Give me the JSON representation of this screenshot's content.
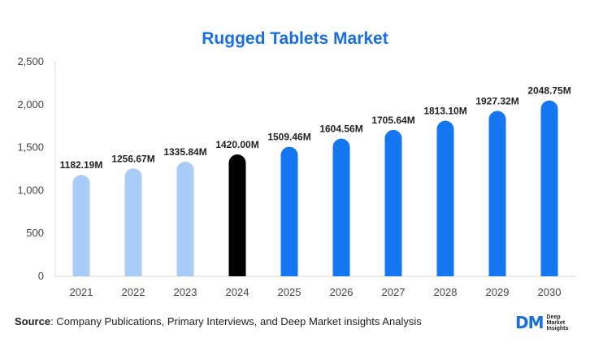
{
  "chart_data": {
    "type": "bar",
    "title": "Rugged Tablets Market",
    "categories": [
      "2021",
      "2022",
      "2023",
      "2024",
      "2025",
      "2026",
      "2027",
      "2028",
      "2029",
      "2030"
    ],
    "values": [
      1182.19,
      1256.67,
      1335.84,
      1420.0,
      1509.46,
      1604.56,
      1705.64,
      1813.1,
      1927.32,
      2048.75
    ],
    "data_labels": [
      "1182.19M",
      "1256.67M",
      "1335.84M",
      "1420.00M",
      "1509.46M",
      "1604.56M",
      "1705.64M",
      "1813.10M",
      "1927.32M",
      "2048.75M"
    ],
    "bar_colors": [
      "#a9cdf8",
      "#a9cdf8",
      "#a9cdf8",
      "#000000",
      "#1577f0",
      "#1577f0",
      "#1577f0",
      "#1577f0",
      "#1577f0",
      "#1577f0"
    ],
    "xlabel": "",
    "ylabel": "",
    "ylim": [
      0,
      2500
    ],
    "yticks": [
      0,
      500,
      1000,
      1500,
      2000,
      2500
    ],
    "ytick_labels": [
      "0",
      "500",
      "1,000",
      "1,500",
      "2,000",
      "2,500"
    ],
    "grid": false
  },
  "source": {
    "key": "Source",
    "text": ": Company Publications, Primary Interviews, and Deep Market insights Analysis"
  },
  "logo": {
    "mark": "DM",
    "text": "Deep\nMarket\nInsights"
  }
}
